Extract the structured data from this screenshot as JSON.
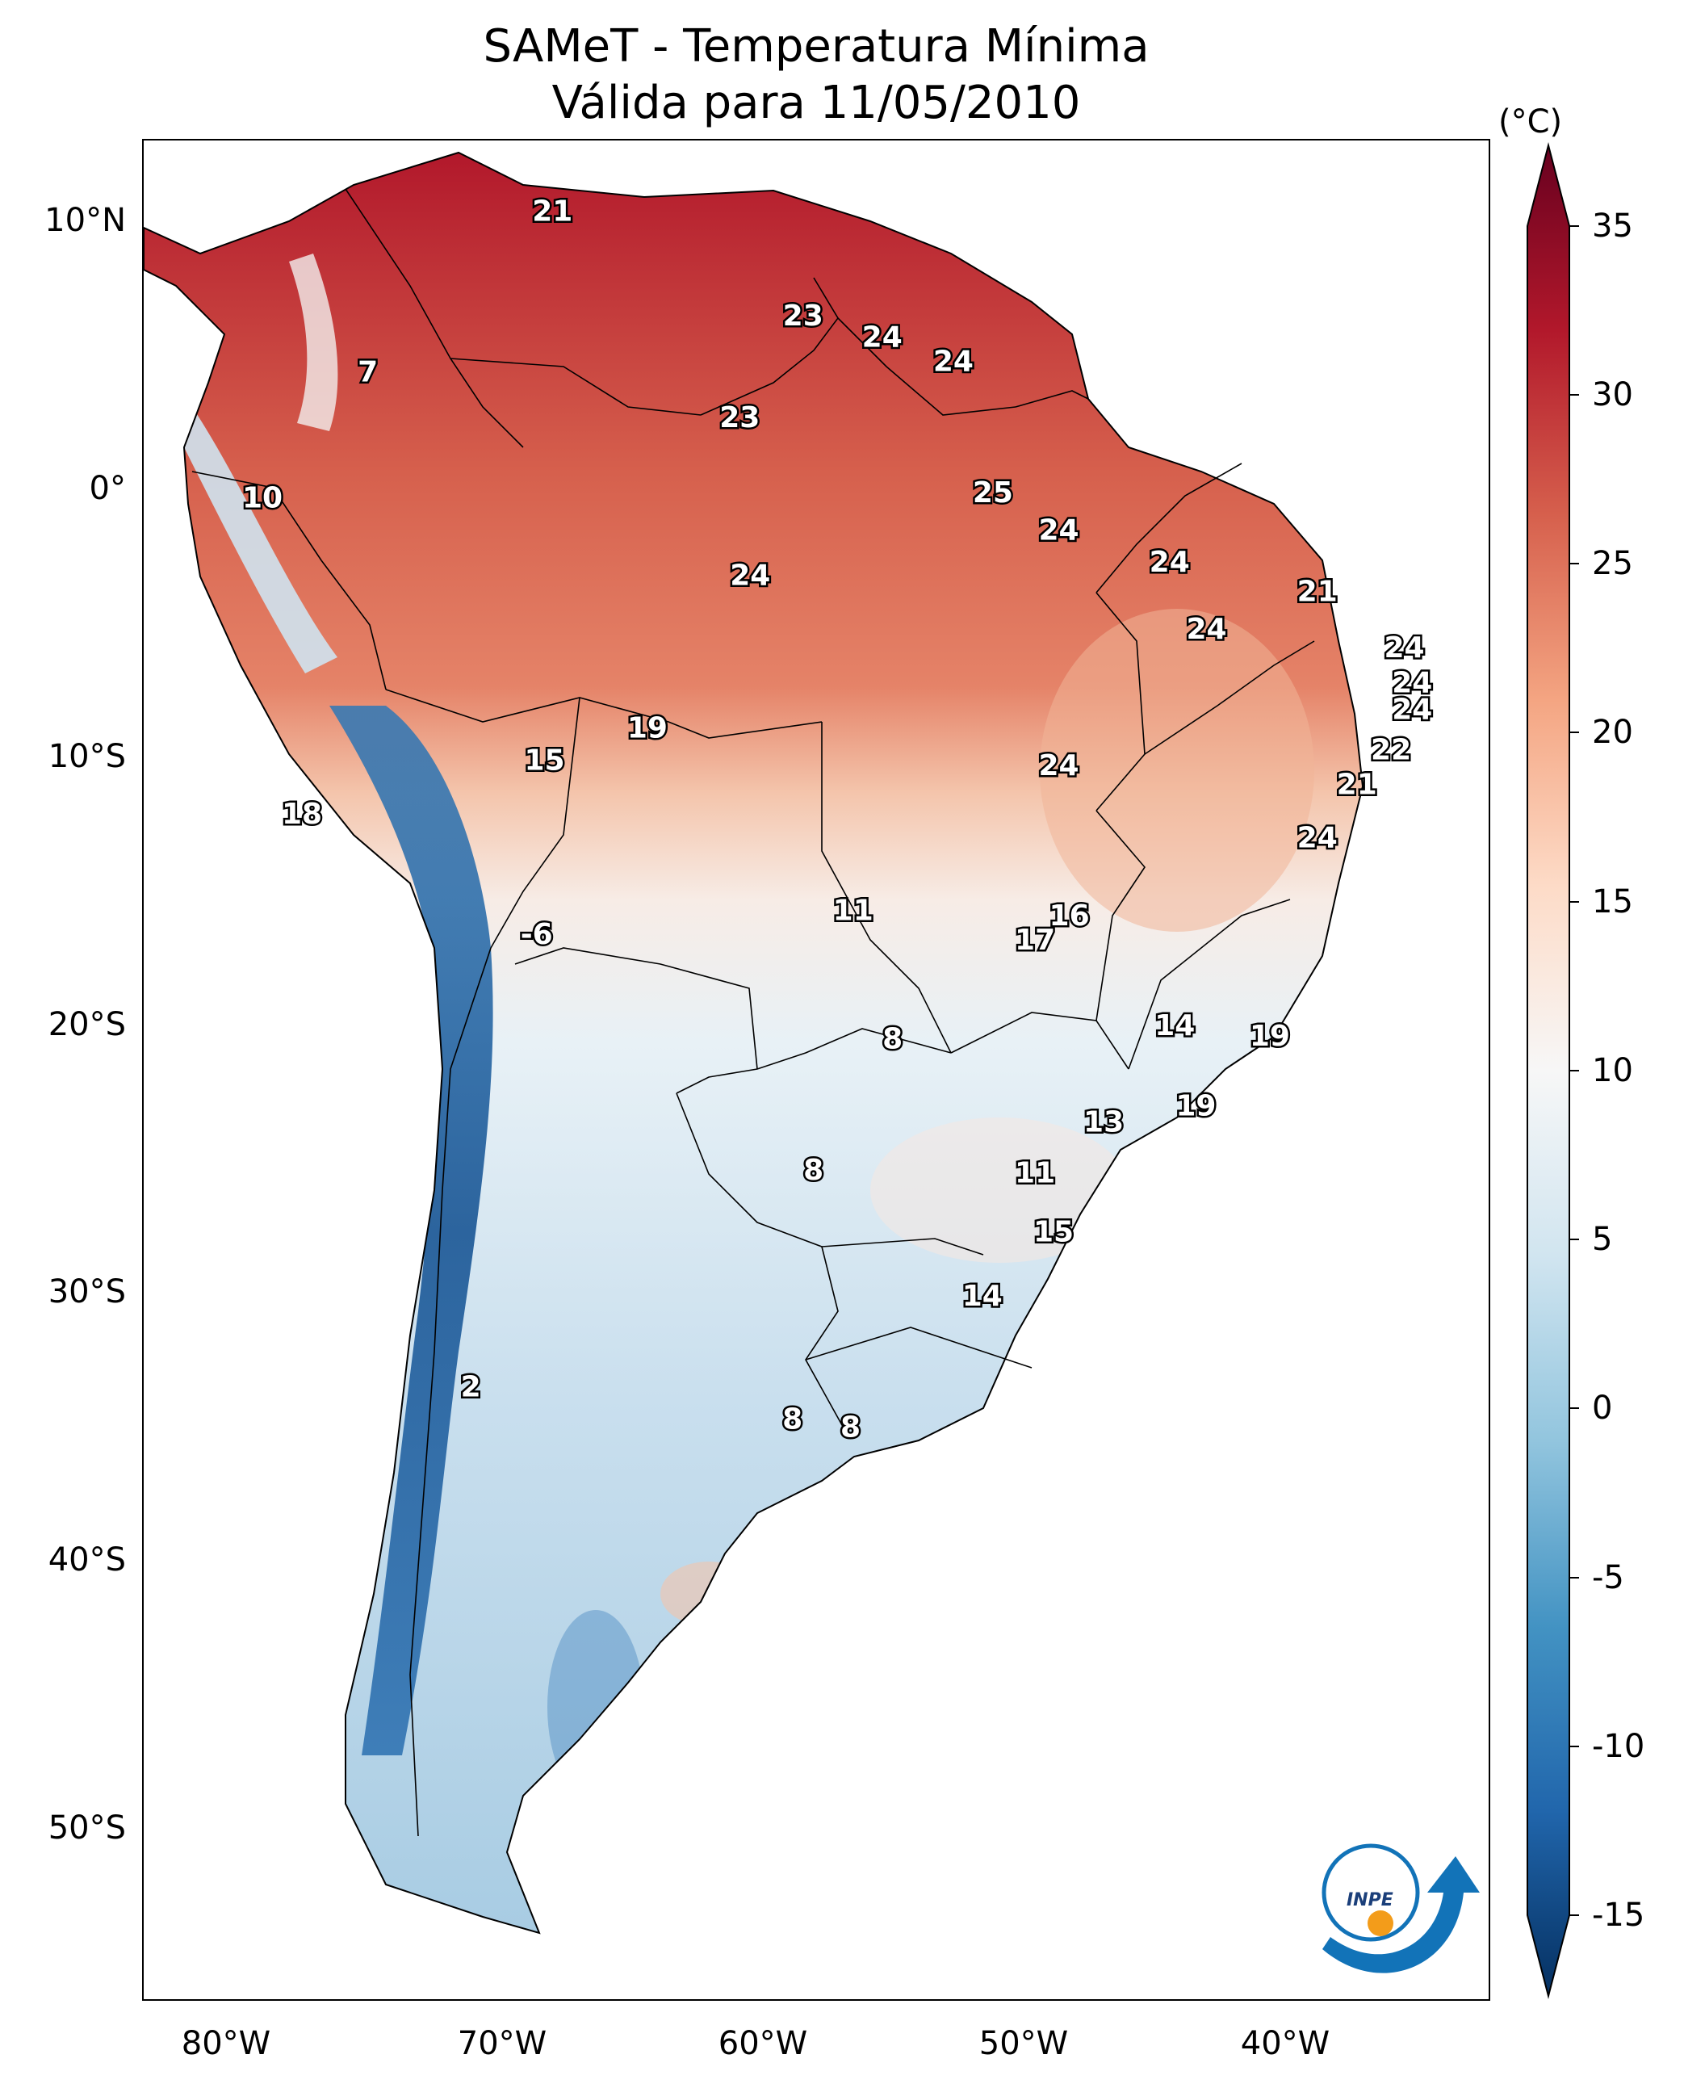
{
  "title": "SAMeT - Temperatura Mínima",
  "subtitle": "Válida para 11/05/2010",
  "axes": {
    "lat_labels": [
      "10°N",
      "0°",
      "10°S",
      "20°S",
      "30°S",
      "40°S",
      "50°S"
    ],
    "lon_labels": [
      "80°W",
      "70°W",
      "60°W",
      "50°W",
      "40°W"
    ]
  },
  "colorbar": {
    "unit": "(°C)",
    "ticks": [
      "35",
      "30",
      "25",
      "20",
      "15",
      "10",
      "5",
      "0",
      "-5",
      "-10",
      "-15"
    ],
    "range": [
      -15,
      35
    ],
    "colors": [
      "#053061",
      "#2166ac",
      "#4393c3",
      "#92c5de",
      "#d1e5f0",
      "#f7f7f7",
      "#fddbc7",
      "#f4a582",
      "#d6604d",
      "#b2182b",
      "#67001f"
    ]
  },
  "labels": [
    {
      "value": "21",
      "lon": -67.5,
      "lat": 10.5
    },
    {
      "value": "7",
      "lon": -74.5,
      "lat": 4.5
    },
    {
      "value": "23",
      "lon": -58.0,
      "lat": 6.6
    },
    {
      "value": "24",
      "lon": -55.0,
      "lat": 5.8
    },
    {
      "value": "24",
      "lon": -52.3,
      "lat": 4.9
    },
    {
      "value": "23",
      "lon": -60.4,
      "lat": 2.8
    },
    {
      "value": "10",
      "lon": -78.5,
      "lat": -0.2
    },
    {
      "value": "25",
      "lon": -50.8,
      "lat": 0.0
    },
    {
      "value": "24",
      "lon": -48.3,
      "lat": -1.4
    },
    {
      "value": "24",
      "lon": -44.1,
      "lat": -2.6
    },
    {
      "value": "24",
      "lon": -60.0,
      "lat": -3.1
    },
    {
      "value": "21",
      "lon": -38.5,
      "lat": -3.7
    },
    {
      "value": "24",
      "lon": -42.7,
      "lat": -5.1
    },
    {
      "value": "24",
      "lon": -35.2,
      "lat": -5.8
    },
    {
      "value": "24",
      "lon": -34.9,
      "lat": -7.1
    },
    {
      "value": "24",
      "lon": -34.9,
      "lat": -8.1
    },
    {
      "value": "19",
      "lon": -63.9,
      "lat": -8.8
    },
    {
      "value": "22",
      "lon": -35.7,
      "lat": -9.6
    },
    {
      "value": "15",
      "lon": -67.8,
      "lat": -10.0
    },
    {
      "value": "24",
      "lon": -48.3,
      "lat": -10.2
    },
    {
      "value": "21",
      "lon": -37.0,
      "lat": -10.9
    },
    {
      "value": "18",
      "lon": -77.0,
      "lat": -12.0
    },
    {
      "value": "24",
      "lon": -38.5,
      "lat": -12.9
    },
    {
      "value": "11",
      "lon": -56.1,
      "lat": -15.6
    },
    {
      "value": "16",
      "lon": -47.9,
      "lat": -15.8
    },
    {
      "value": "17",
      "lon": -49.2,
      "lat": -16.7
    },
    {
      "value": "-6",
      "lon": -68.1,
      "lat": -16.5
    },
    {
      "value": "14",
      "lon": -43.9,
      "lat": -19.9
    },
    {
      "value": "19",
      "lon": -40.3,
      "lat": -20.3
    },
    {
      "value": "8",
      "lon": -54.6,
      "lat": -20.4
    },
    {
      "value": "19",
      "lon": -43.1,
      "lat": -22.9
    },
    {
      "value": "13",
      "lon": -46.6,
      "lat": -23.5
    },
    {
      "value": "11",
      "lon": -49.2,
      "lat": -25.4
    },
    {
      "value": "8",
      "lon": -57.6,
      "lat": -25.3
    },
    {
      "value": "15",
      "lon": -48.5,
      "lat": -27.6
    },
    {
      "value": "14",
      "lon": -51.2,
      "lat": -30.0
    },
    {
      "value": "2",
      "lon": -70.6,
      "lat": -33.4
    },
    {
      "value": "8",
      "lon": -58.4,
      "lat": -34.6
    },
    {
      "value": "8",
      "lon": -56.2,
      "lat": -34.9
    }
  ],
  "logo": {
    "text": "INPE"
  }
}
